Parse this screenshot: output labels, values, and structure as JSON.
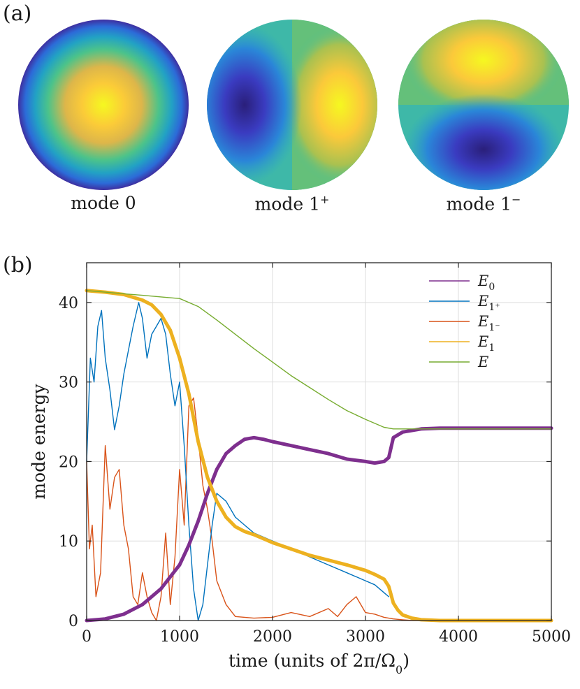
{
  "panel_a": {
    "label": "(a)",
    "modes": [
      {
        "name": "mode 0",
        "base": "mode 0",
        "sup": ""
      },
      {
        "name": "mode 1+",
        "base": "mode 1",
        "sup": "+"
      },
      {
        "name": "mode 1−",
        "base": "mode 1",
        "sup": "−"
      }
    ]
  },
  "panel_b": {
    "label": "(b)"
  },
  "chart_data": {
    "type": "line",
    "title": "",
    "xlabel": "time (units of 2π/Ω",
    "xlabel_sub": "0",
    "xlabel_end": ")",
    "ylabel": "mode energy",
    "xlim": [
      0,
      5000
    ],
    "ylim": [
      0,
      45
    ],
    "xticks": [
      0,
      1000,
      2000,
      3000,
      4000,
      5000
    ],
    "yticks": [
      0,
      10,
      20,
      30,
      40
    ],
    "grid": true,
    "legend_position": "top-right",
    "series": [
      {
        "name": "E0",
        "label": "E",
        "sub": "0",
        "color": "#7e2f8e",
        "weight": "thick",
        "x": [
          0,
          200,
          400,
          600,
          800,
          1000,
          1100,
          1200,
          1300,
          1400,
          1500,
          1600,
          1700,
          1800,
          1900,
          2000,
          2200,
          2400,
          2600,
          2800,
          3000,
          3100,
          3200,
          3250,
          3300,
          3400,
          3600,
          3800,
          4000,
          4200,
          4500,
          5000
        ],
        "y": [
          0,
          0.2,
          0.8,
          2,
          4,
          7,
          9.5,
          12.5,
          16,
          19,
          21,
          22,
          22.8,
          23,
          22.8,
          22.5,
          22,
          21.5,
          21,
          20.3,
          20,
          19.8,
          20,
          20.5,
          23,
          23.7,
          24.1,
          24.2,
          24.2,
          24.2,
          24.2,
          24.2
        ]
      },
      {
        "name": "E1+",
        "label": "E",
        "sub": "1⁺",
        "color": "#0072bd",
        "weight": "thin",
        "x": [
          0,
          40,
          80,
          120,
          160,
          200,
          250,
          300,
          350,
          400,
          450,
          500,
          560,
          600,
          650,
          700,
          750,
          800,
          850,
          900,
          950,
          1000,
          1050,
          1100,
          1150,
          1200,
          1250,
          1300,
          1350,
          1400,
          1500,
          1600,
          1700,
          1800,
          2000,
          2200,
          2400,
          2600,
          2800,
          3000,
          3100,
          3200,
          3250
        ],
        "y": [
          20,
          33,
          30,
          37,
          39,
          33,
          29,
          24,
          27,
          31,
          34,
          37,
          40,
          38,
          33,
          36,
          37,
          38,
          36,
          31,
          27,
          30,
          22,
          12,
          4,
          0,
          2,
          7,
          12,
          16,
          15,
          13,
          12,
          11,
          10,
          9,
          8,
          7,
          6,
          5,
          4.5,
          3.5,
          3
        ]
      },
      {
        "name": "E1-",
        "label": "E",
        "sub": "1⁻",
        "color": "#d95319",
        "weight": "thin",
        "x": [
          0,
          30,
          60,
          100,
          150,
          200,
          250,
          300,
          350,
          400,
          450,
          500,
          550,
          600,
          650,
          700,
          750,
          800,
          850,
          900,
          950,
          1000,
          1050,
          1100,
          1150,
          1200,
          1250,
          1300,
          1350,
          1400,
          1500,
          1600,
          1700,
          1800,
          2000,
          2200,
          2400,
          2600,
          2700,
          2800,
          2900,
          3000,
          3100,
          3200,
          3300,
          3400,
          3500,
          3700,
          4000,
          5000
        ],
        "y": [
          20,
          9,
          12,
          3,
          6,
          22,
          14,
          18,
          19,
          12,
          9,
          3,
          2,
          6,
          3,
          1,
          0,
          3,
          11,
          2,
          8,
          19,
          12,
          27,
          28,
          23,
          17,
          14,
          10,
          5,
          2,
          0.5,
          0.4,
          0.3,
          0.4,
          1,
          0.5,
          1.5,
          0.5,
          2,
          3,
          1,
          0.8,
          0.4,
          0.2,
          0.1,
          0,
          0,
          0,
          0
        ]
      },
      {
        "name": "E1",
        "label": "E",
        "sub": "1",
        "color": "#edb120",
        "weight": "thick",
        "x": [
          0,
          200,
          400,
          600,
          700,
          800,
          900,
          1000,
          1100,
          1200,
          1300,
          1400,
          1500,
          1600,
          1700,
          1800,
          2000,
          2200,
          2400,
          2600,
          2800,
          3000,
          3100,
          3200,
          3250,
          3300,
          3350,
          3400,
          3500,
          3600,
          3800,
          4000,
          5000
        ],
        "y": [
          41.5,
          41.3,
          41,
          40.3,
          39.7,
          38.5,
          36.5,
          33,
          28.5,
          22.5,
          18,
          15,
          13,
          11.8,
          11.2,
          10.8,
          9.8,
          9,
          8.2,
          7.6,
          7,
          6.3,
          5.8,
          5.2,
          4.3,
          2.2,
          1.3,
          0.7,
          0.3,
          0.1,
          0,
          0,
          0
        ]
      },
      {
        "name": "E",
        "label": "E",
        "sub": "",
        "color": "#77ac30",
        "weight": "thin",
        "x": [
          0,
          200,
          400,
          600,
          800,
          1000,
          1200,
          1400,
          1600,
          1800,
          2000,
          2200,
          2400,
          2600,
          2800,
          3000,
          3200,
          3300,
          3400,
          3600,
          3800,
          4000,
          4200,
          4500,
          5000
        ],
        "y": [
          41.5,
          41.3,
          41.1,
          40.9,
          40.7,
          40.5,
          39.5,
          37.8,
          36,
          34.2,
          32.5,
          30.8,
          29.3,
          27.8,
          26.4,
          25.3,
          24.3,
          24.1,
          24.1,
          24.1,
          24.1,
          24.1,
          24.1,
          24.1,
          24.1
        ]
      }
    ]
  }
}
